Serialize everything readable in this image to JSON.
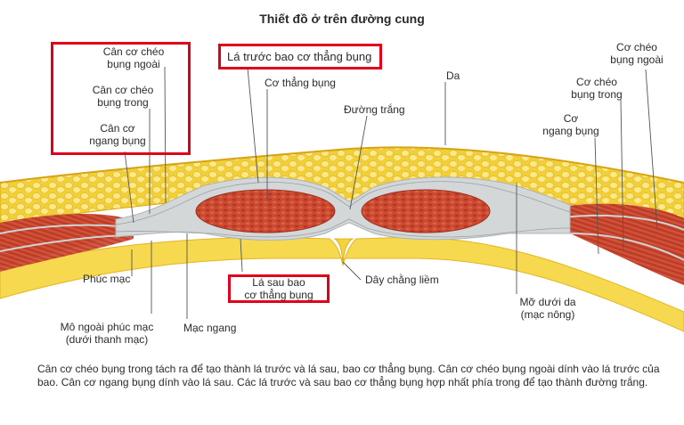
{
  "title": "Thiết đồ ở trên đường cung",
  "labels": {
    "ext_oblique_apon_left": "Cân cơ chéo\nbụng ngoài",
    "int_oblique_apon_left": "Cân cơ chéo\nbụng trong",
    "transversus_apon_left": "Cân cơ\nngang bụng",
    "anterior_sheath": "Lá trước bao cơ thẳng bụng",
    "rectus": "Cơ thẳng bụng",
    "linea_alba": "Đường trắng",
    "skin": "Da",
    "ext_oblique_right": "Cơ chéo\nbụng ngoài",
    "int_oblique_right": "Cơ chéo\nbụng trong",
    "transversus_right": "Cơ\nngang bụng",
    "peritoneum": "Phúc mạc",
    "extraperitoneal": "Mô ngoài phúc mạc\n(dưới thanh mạc)",
    "transversalis_fascia": "Mạc ngang",
    "posterior_sheath": "Lá sau bao\ncơ thẳng bụng",
    "falciform": "Dây chằng liềm",
    "subcutaneous": "Mỡ dưới da\n(mạc nông)"
  },
  "caption": "Cân cơ chéo bụng trong tách ra để tạo thành lá trước và lá sau, bao cơ thẳng bụng. Cân cơ chéo bụng ngoài dính vào lá trước của bao. Cân cơ ngang bụng dính vào lá sau. Các lá trước và sau bao cơ thẳng bụng hợp nhất phía trong để tạo thành đường trắng.",
  "colors": {
    "fat": "#f2d64a",
    "fat_blob": "#f9ea8a",
    "muscle": "#c9452e",
    "fascia": "#d3d7d8",
    "highlight": "#e1001a"
  }
}
